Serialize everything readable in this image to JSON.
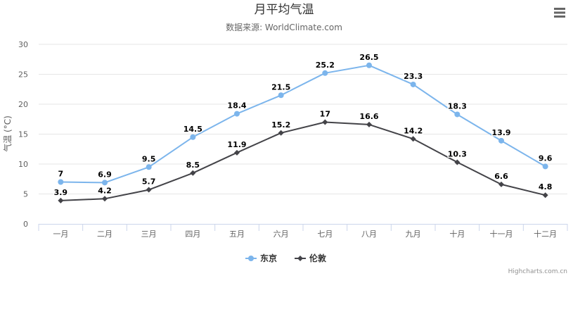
{
  "chart_data": {
    "type": "line",
    "title": "月平均气温",
    "subtitle": "数据来源: WorldClimate.com",
    "ylabel": "气温 (°C)",
    "xlabel": "",
    "ylim": [
      0,
      30
    ],
    "yticks": [
      0,
      5,
      10,
      15,
      20,
      25,
      30
    ],
    "grid": true,
    "legend_position": "bottom",
    "categories": [
      "一月",
      "二月",
      "三月",
      "四月",
      "五月",
      "六月",
      "七月",
      "八月",
      "九月",
      "十月",
      "十一月",
      "十二月"
    ],
    "series": [
      {
        "name": "东京",
        "values": [
          7,
          6.9,
          9.5,
          14.5,
          18.4,
          21.5,
          25.2,
          26.5,
          23.3,
          18.3,
          13.9,
          9.6
        ],
        "color": "#7cb5ec",
        "marker": "circle"
      },
      {
        "name": "伦敦",
        "values": [
          3.9,
          4.2,
          5.7,
          8.5,
          11.9,
          15.2,
          17,
          16.6,
          14.2,
          10.3,
          6.6,
          4.8
        ],
        "color": "#434348",
        "marker": "diamond"
      }
    ]
  },
  "credits": "Highcharts.com.cn",
  "menu_icon": "hamburger-menu-icon"
}
